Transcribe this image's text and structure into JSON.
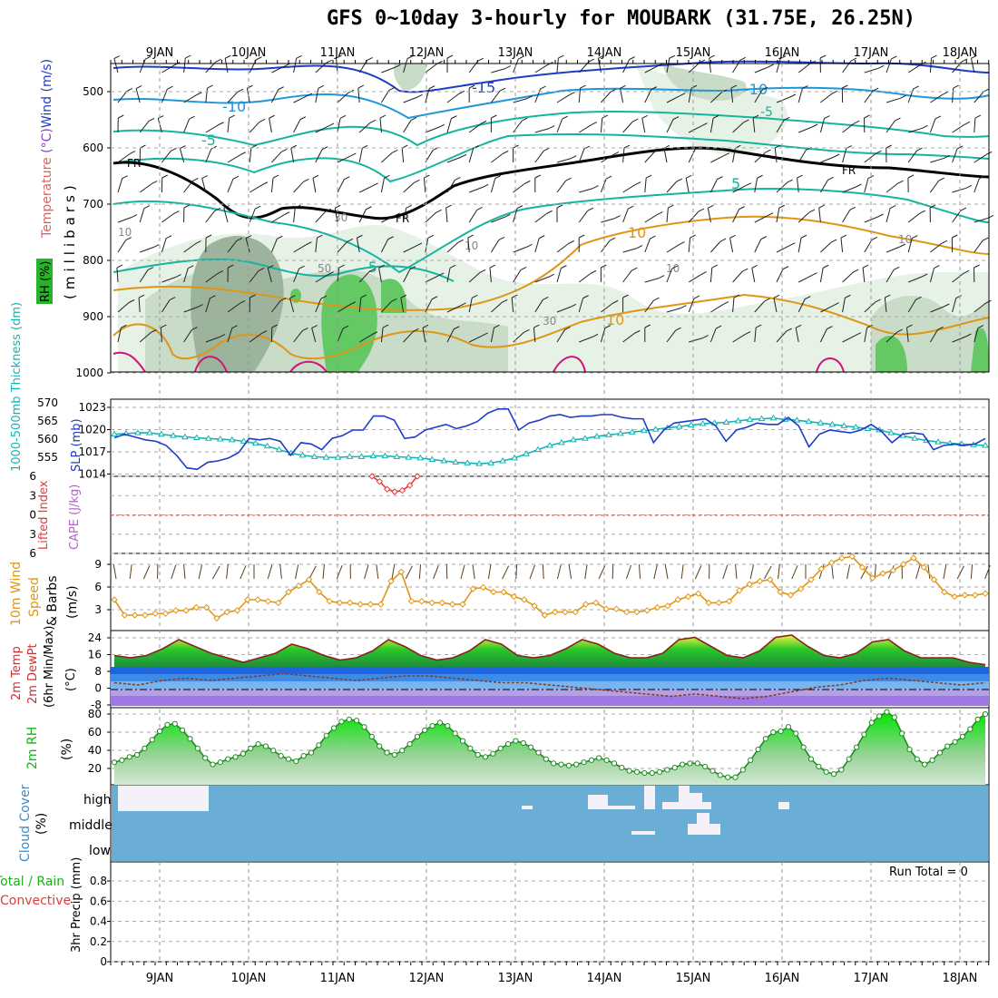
{
  "title": "GFS 0~10day 3-hourly for MOUBARK (31.75E, 26.25N)",
  "days": [
    "9JAN",
    "10JAN",
    "11JAN",
    "12JAN",
    "13JAN",
    "14JAN",
    "15JAN",
    "16JAN",
    "17JAN",
    "18JAN"
  ],
  "colors": {
    "frame": "#000000",
    "grid": "#aaaaaa",
    "wind_blue": "#1e3cc8",
    "wind_cyan": "#1e96dc",
    "temp_teal": "#14b4a0",
    "temp_orange": "#e09614",
    "temp_magenta": "#d21478",
    "slp": "#1e3cc8",
    "thickness": "#14b4b4",
    "li": "#e03c3c",
    "wind10": "#e09614",
    "rh_green": "#28dc28",
    "cloud_bg": "#6aaed6",
    "cloud_white": "#f4f0f8"
  },
  "panels": {
    "upper": {
      "ylabel_parts": [
        "RH (%)",
        "Temperature (°C)",
        "Wind (m/s)"
      ],
      "axis_label": "(millibars)",
      "ticks": [
        "500",
        "600",
        "700",
        "800",
        "900",
        "1000"
      ],
      "contour_labels": [
        "-10",
        "-15",
        "-10",
        "-5",
        "-5",
        "-10",
        "FR",
        "FR",
        "FR",
        "-5",
        "10",
        "10",
        "5",
        "-5",
        "-10",
        "-10",
        "10",
        "30",
        "30",
        "50",
        "10",
        "10",
        "10",
        "30",
        "10"
      ]
    },
    "slp": {
      "ylabel_left": "1000-500mb Thickness (dm)",
      "ylabel_right": "SLP (mb)",
      "ticks_left": [
        "570",
        "565",
        "560",
        "555"
      ],
      "ticks_right": [
        "1023",
        "1020",
        "1017",
        "1014"
      ]
    },
    "cape": {
      "ylabel_left": "Lifted Index",
      "ylabel_right": "CAPE (J/kg)",
      "ticks": [
        "6",
        "3",
        "0",
        "3",
        "6"
      ]
    },
    "wind10": {
      "ylabel": [
        "10m Wind",
        "Speed",
        "& Barbs"
      ],
      "unit": "(m/s)",
      "ticks": [
        "9",
        "6",
        "3"
      ]
    },
    "temp2m": {
      "ylabel": [
        "2m Temp",
        "2m DewPt",
        "(6hr Min/Max)"
      ],
      "unit": "(°C)",
      "ticks": [
        "24",
        "16",
        "8",
        "0",
        "-8"
      ]
    },
    "rh2m": {
      "ylabel": "2m RH",
      "unit": "(%)",
      "ticks": [
        "80",
        "60",
        "40",
        "20"
      ]
    },
    "cloud": {
      "ylabel": "Cloud Cover",
      "unit": "(%)",
      "levels": [
        "high",
        "middle",
        "low"
      ]
    },
    "precip": {
      "ylabel_total": "Total / Rain",
      "ylabel_conv": "Convective",
      "ylabel": "3hr Precip (mm)",
      "ticks": [
        "0.8",
        "0.6",
        "0.4",
        "0.2",
        "0"
      ],
      "run_total": "Run Total = 0"
    }
  },
  "chart_data": [
    {
      "type": "line",
      "name": "slp",
      "ylabel": "SLP (mb)",
      "ylim": [
        1013,
        1024
      ],
      "values": [
        1018.5,
        1019.0,
        1018.6,
        1018.2,
        1018.0,
        1017.4,
        1016.0,
        1014.2,
        1014.0,
        1015.0,
        1015.2,
        1015.6,
        1016.4,
        1018.4,
        1018.2,
        1018.4,
        1018.0,
        1016.0,
        1017.8,
        1017.6,
        1016.8,
        1018.4,
        1018.8,
        1019.6,
        1019.6,
        1021.6,
        1021.6,
        1021.0,
        1018.4,
        1018.6,
        1019.6,
        1020.0,
        1020.4,
        1019.8,
        1020.2,
        1020.8,
        1022.0,
        1022.6,
        1022.6,
        1019.6,
        1020.6,
        1021.0,
        1021.6,
        1021.8,
        1021.4,
        1021.6,
        1021.6,
        1021.8,
        1021.8,
        1021.4,
        1021.2,
        1021.2,
        1017.8,
        1019.6,
        1020.6,
        1020.8,
        1021.0,
        1021.2,
        1020.2,
        1018.0,
        1019.6,
        1020.0,
        1020.6,
        1020.4,
        1020.4,
        1021.4,
        1020.2,
        1017.2,
        1019.0,
        1019.6,
        1019.4,
        1019.2,
        1019.6,
        1020.4,
        1019.4,
        1017.8,
        1019.0,
        1019.2,
        1019.0,
        1016.8,
        1017.4,
        1017.6,
        1017.4,
        1017.6,
        1018.4
      ]
    },
    {
      "type": "line",
      "name": "thickness",
      "ylabel": "1000-500mb Thickness (dm)",
      "ylim": [
        550,
        572
      ],
      "values": [
        562.0,
        562.2,
        562.4,
        562.4,
        562.0,
        561.6,
        561.2,
        561.0,
        560.8,
        560.6,
        560.4,
        560.0,
        559.4,
        558.6,
        557.6,
        556.6,
        556.0,
        555.6,
        555.4,
        555.4,
        555.6,
        555.6,
        555.8,
        555.8,
        555.6,
        555.4,
        555.2,
        554.8,
        554.4,
        554.0,
        553.8,
        553.6,
        553.8,
        554.4,
        555.2,
        556.4,
        557.6,
        558.8,
        559.6,
        560.4,
        560.8,
        561.4,
        561.8,
        562.2,
        562.6,
        563.0,
        563.4,
        563.8,
        564.2,
        564.6,
        565.0,
        565.2,
        565.4,
        565.8,
        566.2,
        566.4,
        566.6,
        566.2,
        566.0,
        565.6,
        565.2,
        564.8,
        564.4,
        564.0,
        563.6,
        563.2,
        562.4,
        561.6,
        560.8,
        560.2,
        559.8,
        559.4,
        559.2,
        559.0,
        558.8
      ]
    },
    {
      "type": "line",
      "name": "lifted_index",
      "ylabel": "Lifted Index",
      "ylim": [
        -6,
        6
      ],
      "values": [
        6,
        5.2,
        4.0,
        3.6,
        3.8,
        4.6,
        6
      ]
    },
    {
      "type": "line",
      "name": "wind10_speed",
      "ylabel": "10m Wind Speed (m/s)",
      "ylim": [
        0,
        10
      ],
      "values": [
        4.0,
        2.0,
        2.0,
        2.0,
        2.2,
        2.2,
        2.6,
        2.6,
        3.0,
        3.0,
        1.6,
        2.4,
        2.6,
        4.0,
        4.0,
        3.8,
        3.6,
        5.0,
        5.8,
        6.6,
        5.0,
        3.8,
        3.6,
        3.6,
        3.4,
        3.4,
        3.4,
        6.4,
        7.6,
        3.8,
        3.8,
        3.6,
        3.6,
        3.4,
        3.4,
        5.4,
        5.6,
        5.0,
        5.0,
        4.4,
        4.0,
        3.2,
        2.0,
        2.4,
        2.4,
        2.4,
        3.4,
        3.6,
        2.8,
        2.8,
        2.4,
        2.4,
        2.6,
        3.0,
        3.2,
        4.0,
        4.4,
        4.8,
        3.6,
        3.6,
        3.8,
        5.2,
        6.0,
        6.4,
        6.6,
        5.0,
        4.6,
        5.4,
        6.6,
        8.0,
        8.8,
        9.4,
        9.6,
        8.2,
        6.8,
        7.4,
        7.8,
        8.6,
        9.4,
        8.2,
        6.6,
        5.0,
        4.4,
        4.6,
        4.6,
        4.8
      ]
    },
    {
      "type": "area",
      "name": "temp2m",
      "ylabel": "2m Temp (°C)",
      "ylim": [
        -8,
        26
      ],
      "values": [
        15,
        14,
        15,
        18,
        22,
        19,
        16,
        14,
        12,
        14,
        16,
        20,
        18,
        15,
        13,
        14,
        17,
        22,
        19,
        15,
        13,
        14,
        17,
        22,
        20,
        15,
        14,
        15,
        18,
        22,
        20,
        16,
        14,
        14,
        16,
        22,
        23,
        19,
        15,
        14,
        17,
        23,
        24,
        19,
        15,
        14,
        16,
        21,
        22,
        17,
        14,
        14,
        14,
        12,
        11
      ]
    },
    {
      "type": "line",
      "name": "dewpt2m",
      "ylabel": "2m DewPt (°C)",
      "ylim": [
        -8,
        26
      ],
      "values": [
        3,
        2,
        4,
        5,
        4,
        5,
        6,
        7,
        6,
        5,
        4,
        5,
        6,
        6,
        5,
        4,
        3,
        3,
        2,
        1,
        0,
        -1,
        -2,
        -3,
        -2,
        -3,
        -4,
        -3,
        -1,
        1,
        2,
        4,
        5,
        4,
        3,
        2,
        3
      ]
    },
    {
      "type": "area",
      "name": "rh2m",
      "ylabel": "2m RH (%)",
      "ylim": [
        10,
        82
      ],
      "values": [
        31,
        33,
        36,
        38,
        44,
        52,
        60,
        66,
        67,
        61,
        53,
        44,
        35,
        29,
        31,
        34,
        36,
        39,
        44,
        48,
        46,
        42,
        37,
        34,
        32,
        37,
        40,
        47,
        56,
        63,
        69,
        71,
        70,
        64,
        55,
        46,
        40,
        38,
        42,
        48,
        55,
        61,
        65,
        68,
        65,
        58,
        51,
        44,
        38,
        36,
        39,
        44,
        48,
        51,
        49,
        45,
        40,
        34,
        30,
        29,
        28,
        29,
        31,
        33,
        35,
        33,
        30,
        26,
        23,
        22,
        21,
        21,
        22,
        24,
        26,
        29,
        30,
        30,
        27,
        23,
        19,
        17,
        17,
        24,
        33,
        43,
        53,
        59,
        60,
        64,
        58,
        45,
        34,
        27,
        22,
        20,
        24,
        34,
        45,
        57,
        68,
        74,
        78,
        73,
        58,
        43,
        34,
        29,
        33,
        40,
        46,
        50,
        55,
        62,
        71,
        76
      ]
    },
    {
      "type": "table",
      "name": "precip",
      "ylabel": "3hr Precip (mm)",
      "ylim": [
        0,
        1
      ],
      "values": []
    }
  ]
}
